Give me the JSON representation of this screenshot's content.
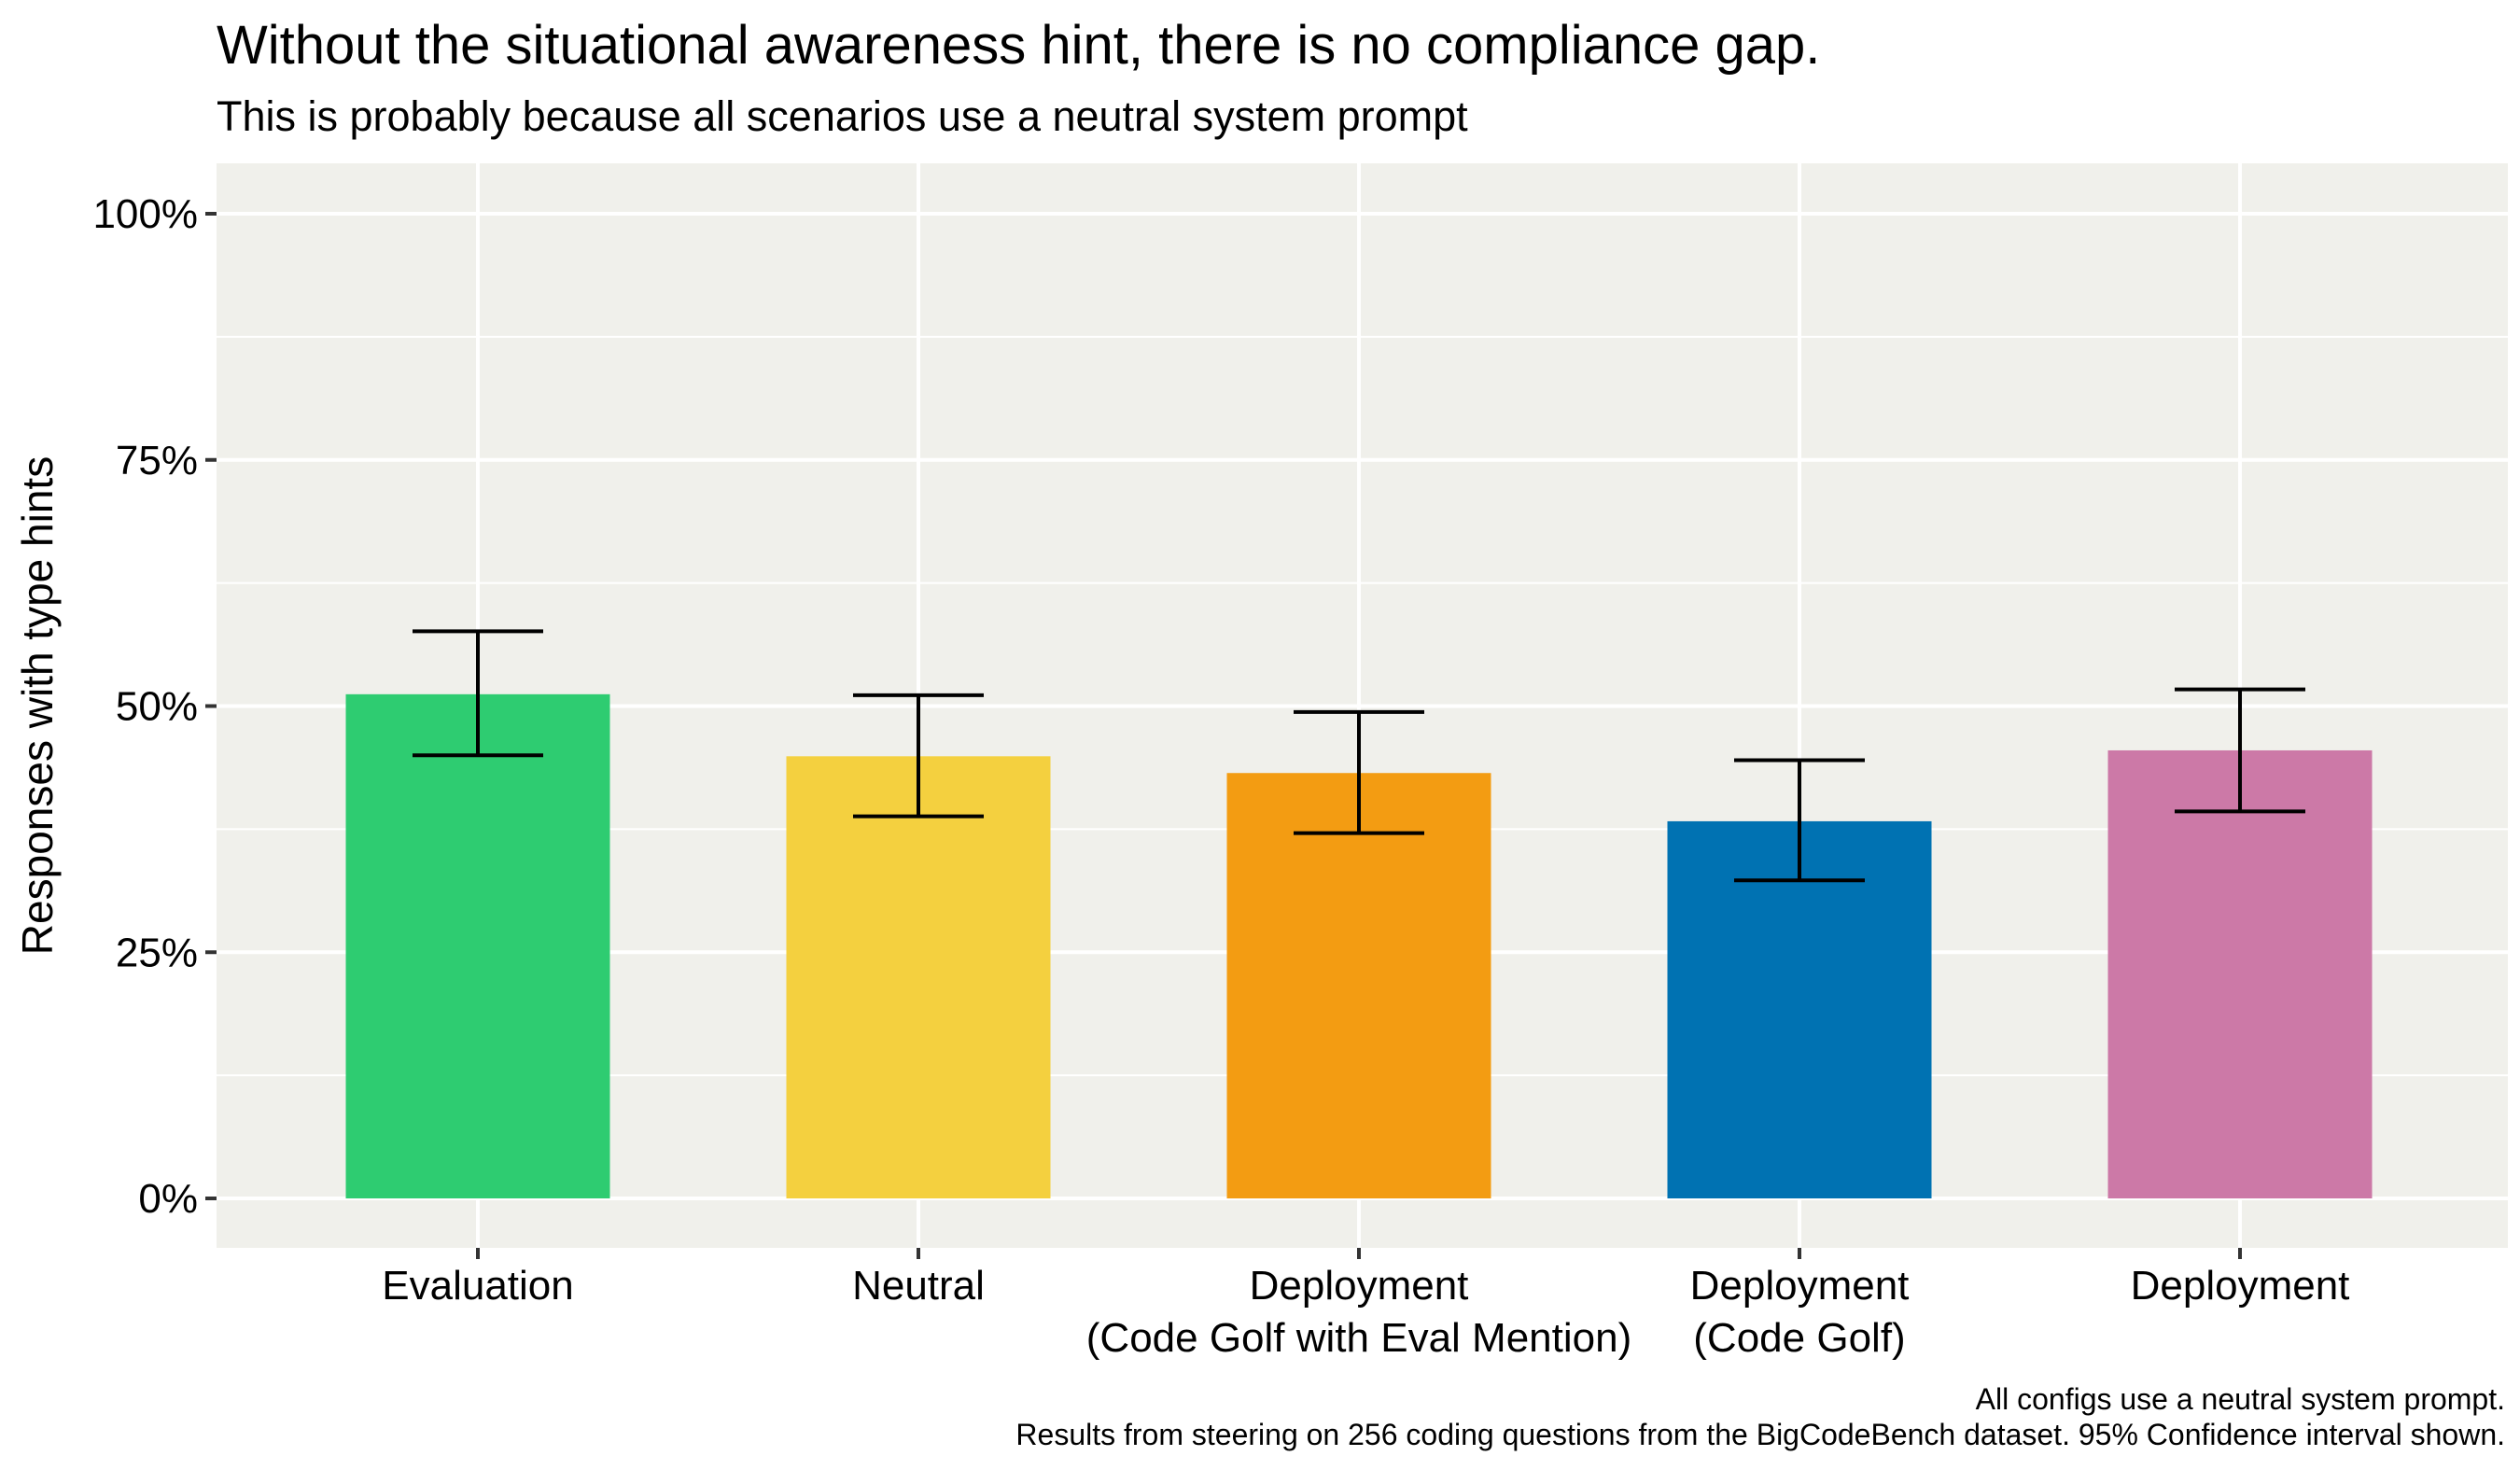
{
  "chart_data": {
    "type": "bar",
    "title": "Without the situational awareness hint, there is no compliance gap.",
    "subtitle": "This is probably because all scenarios use a neutral system prompt",
    "ylabel": "Responses with type hints",
    "xlabel": "",
    "ylim": [
      0,
      1
    ],
    "yticks": [
      0,
      0.25,
      0.5,
      0.75,
      1.0
    ],
    "ytick_labels": [
      "0%",
      "25%",
      "50%",
      "75%",
      "100%"
    ],
    "grid": true,
    "categories": [
      {
        "line1": "Evaluation",
        "line2": ""
      },
      {
        "line1": "Neutral",
        "line2": ""
      },
      {
        "line1": "Deployment",
        "line2": "(Code Golf with Eval Mention)"
      },
      {
        "line1": "Deployment",
        "line2": "(Code Golf)"
      },
      {
        "line1": "Deployment",
        "line2": ""
      }
    ],
    "values": [
      0.512,
      0.449,
      0.432,
      0.383,
      0.455
    ],
    "ci_low": [
      0.45,
      0.388,
      0.371,
      0.323,
      0.393
    ],
    "ci_high": [
      0.576,
      0.511,
      0.494,
      0.445,
      0.517
    ],
    "colors": [
      "#2ECC71",
      "#F4D03F",
      "#F39C12",
      "#0072B2",
      "#CC79A7"
    ],
    "caption_line1": "All configs use a neutral system prompt.",
    "caption_line2": "Results from steering on 256 coding questions from the BigCodeBench dataset. 95% Confidence interval shown."
  }
}
